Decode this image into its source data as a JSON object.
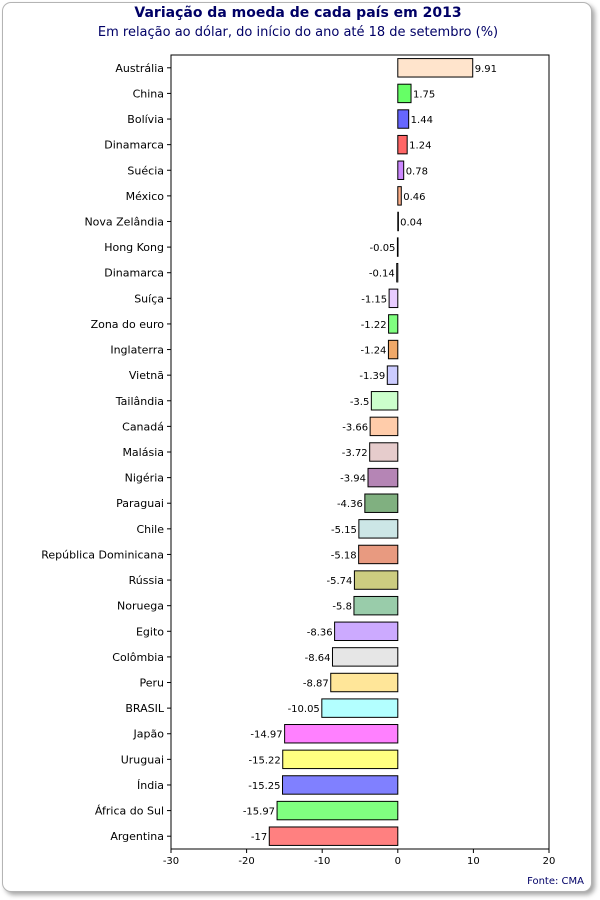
{
  "header": {
    "title": "Variação da moeda de cada país em 2013",
    "subtitle": "Em relação ao dólar, do início do ano até 18 de setembro (%)"
  },
  "footer": {
    "source": "Fonte: CMA"
  },
  "chart_data": {
    "type": "bar",
    "orientation": "horizontal",
    "title": "Variação da moeda de cada país em 2013",
    "subtitle": "Em relação ao dólar, do início do ano até 18 de setembro (%)",
    "xlabel": "",
    "ylabel": "",
    "xlim": [
      -30,
      20
    ],
    "xticks": [
      -30,
      -20,
      -10,
      0,
      10,
      20
    ],
    "grid": false,
    "categories": [
      "Austrália",
      "China",
      "Bolívia",
      "Dinamarca",
      "Suécia",
      "México",
      "Nova Zelândia",
      "Hong Kong",
      "Dinamarca",
      "Suíça",
      "Zona do euro",
      "Inglaterra",
      "Vietnã",
      "Tailândia",
      "Canadá",
      "Malásia",
      "Nigéria",
      "Paraguai",
      "Chile",
      "República Dominicana",
      "Rússia",
      "Noruega",
      "Egito",
      "Colômbia",
      "Peru",
      "BRASIL",
      "Japão",
      "Uruguai",
      "Índia",
      "África do Sul",
      "Argentina"
    ],
    "values": [
      9.91,
      1.75,
      1.44,
      1.24,
      0.78,
      0.46,
      0.04,
      -0.05,
      -0.14,
      -1.15,
      -1.22,
      -1.24,
      -1.39,
      -3.5,
      -3.66,
      -3.72,
      -3.94,
      -4.36,
      -5.15,
      -5.18,
      -5.74,
      -5.8,
      -8.36,
      -8.64,
      -8.87,
      -10.05,
      -14.97,
      -15.22,
      -15.25,
      -15.97,
      -17
    ],
    "value_labels": [
      "9.91",
      "1.75",
      "1.44",
      "1.24",
      "0.78",
      "0.46",
      "0.04",
      "-0.05",
      "-0.14",
      "-1.15",
      "-1.22",
      "-1.24",
      "-1.39",
      "-3.5",
      "-3.66",
      "-3.72",
      "-3.94",
      "-4.36",
      "-5.15",
      "-5.18",
      "-5.74",
      "-5.8",
      "-8.36",
      "-8.64",
      "-8.87",
      "-10.05",
      "-14.97",
      "-15.22",
      "-15.25",
      "-15.97",
      "-17"
    ],
    "colors": [
      "#ffe4cc",
      "#66ff66",
      "#6666ff",
      "#ff6666",
      "#cc88ff",
      "#ffb08a",
      "#ffffff",
      "#ffffff",
      "#ffffff",
      "#e8ccff",
      "#80ff80",
      "#f0a868",
      "#ccccff",
      "#ccffcc",
      "#ffccaa",
      "#e6cccc",
      "#b585b5",
      "#80b080",
      "#cce6e6",
      "#e89a80",
      "#cccc80",
      "#99ccaa",
      "#ccaaff",
      "#e6e6e6",
      "#ffe699",
      "#b3ffff",
      "#ff80ff",
      "#ffff80",
      "#8080ff",
      "#80ff80",
      "#ff8080"
    ]
  }
}
